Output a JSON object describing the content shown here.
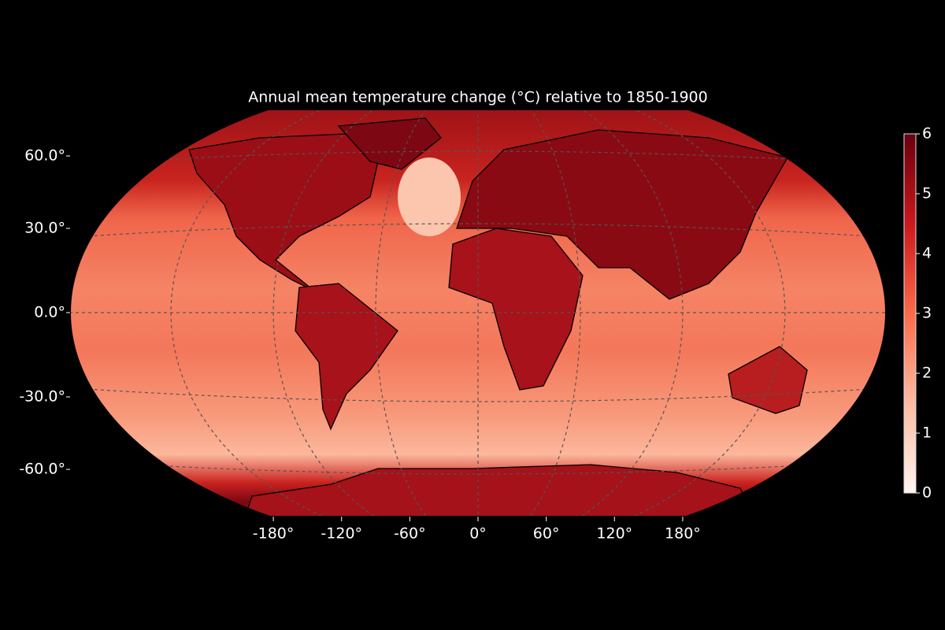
{
  "map": {
    "title": "Annual mean temperature change (°C) relative to 1850-1900",
    "lat_ticks": [
      {
        "value": 60,
        "label": "60.0°"
      },
      {
        "value": 30,
        "label": "30.0°"
      },
      {
        "value": 0,
        "label": "0.0°"
      },
      {
        "value": -30,
        "label": "-30.0°"
      },
      {
        "value": -60,
        "label": "-60.0°"
      }
    ],
    "lon_ticks": [
      {
        "value": -180,
        "label": "-180°"
      },
      {
        "value": -120,
        "label": "-120°"
      },
      {
        "value": -60,
        "label": "-60°"
      },
      {
        "value": 0,
        "label": "0°"
      },
      {
        "value": 60,
        "label": "60°"
      },
      {
        "value": 120,
        "label": "120°"
      },
      {
        "value": 180,
        "label": "180°"
      }
    ],
    "colorbar": {
      "lim": [
        0,
        6
      ],
      "ticks": [
        0,
        1,
        2,
        3,
        4,
        5,
        6
      ]
    }
  }
}
